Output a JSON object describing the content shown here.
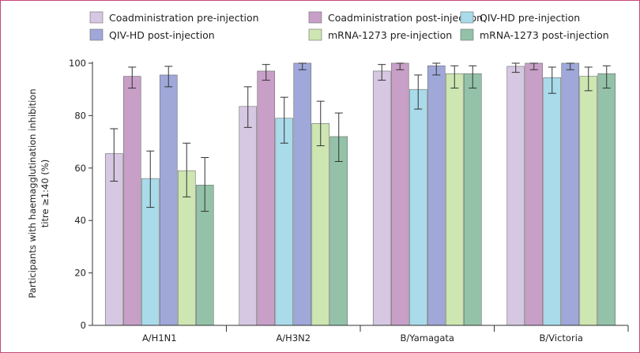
{
  "chart_data": {
    "type": "bar",
    "ylabel_line1": "Participants with haemagglutination inhibition",
    "ylabel_line2": "titre ≥1:40 (%)",
    "ylim": [
      0,
      100
    ],
    "yticks": [
      0,
      20,
      40,
      60,
      80,
      100
    ],
    "categories": [
      "A/H1N1",
      "A/H3N2",
      "B/Yamagata",
      "B/Victoria"
    ],
    "legend_position": "top",
    "series": [
      {
        "name": "Coadministration pre-injection",
        "color": "#d6c8e2",
        "values": [
          65.5,
          83.5,
          97,
          98.8
        ],
        "ci_low": [
          55,
          75.5,
          93.5,
          96.5
        ],
        "ci_high": [
          75,
          91,
          99.5,
          100
        ]
      },
      {
        "name": "Coadministration post-injection",
        "color": "#c79fc7",
        "values": [
          95,
          97,
          100,
          100
        ],
        "ci_low": [
          90.5,
          93.5,
          97.5,
          97.5
        ],
        "ci_high": [
          98.5,
          99.5,
          100,
          100
        ]
      },
      {
        "name": "QIV-HD pre-injection",
        "color": "#a9dbea",
        "values": [
          56,
          79,
          90,
          94.5
        ],
        "ci_low": [
          45,
          69.5,
          82.5,
          88.5
        ],
        "ci_high": [
          66.5,
          87,
          95.5,
          98.5
        ]
      },
      {
        "name": "QIV-HD post-injection",
        "color": "#9fa8d9",
        "values": [
          95.5,
          100,
          99,
          100
        ],
        "ci_low": [
          91,
          97.5,
          95.5,
          97.5
        ],
        "ci_high": [
          98.8,
          100,
          100,
          100
        ]
      },
      {
        "name": "mRNA-1273 pre-injection",
        "color": "#cde6b2",
        "values": [
          59,
          77,
          96,
          95
        ],
        "ci_low": [
          49,
          68.5,
          90.5,
          89.5
        ],
        "ci_high": [
          69.5,
          85.5,
          99,
          98.5
        ]
      },
      {
        "name": "mRNA-1273 post-injection",
        "color": "#93c2a8",
        "values": [
          53.5,
          72,
          96,
          96
        ],
        "ci_low": [
          43.5,
          62.5,
          90.5,
          90.5
        ],
        "ci_high": [
          64,
          81,
          99,
          99
        ]
      }
    ]
  }
}
